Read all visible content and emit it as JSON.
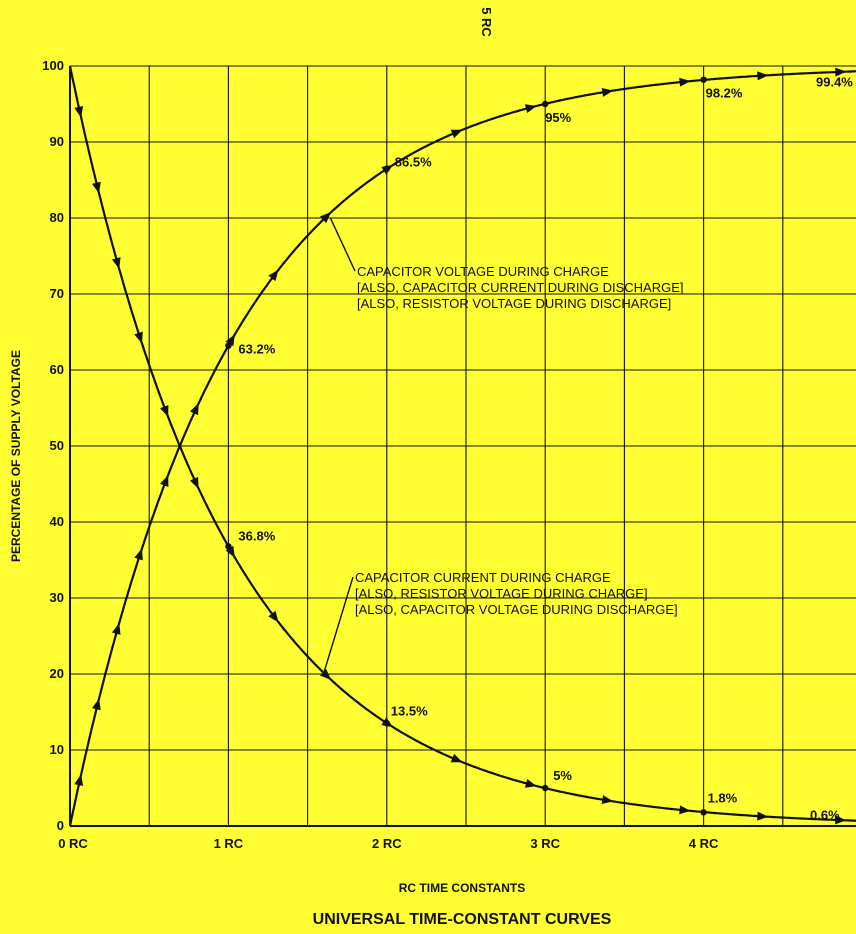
{
  "chart_data": {
    "type": "line",
    "title": "UNIVERSAL TIME-CONSTANT CURVES",
    "xlabel": "RC TIME CONSTANTS",
    "ylabel": "PERCENTAGE OF SUPPLY VOLTAGE",
    "top_label": "5 RC",
    "xlim": [
      0,
      5
    ],
    "ylim": [
      0,
      100
    ],
    "grid": true,
    "x_ticks": [
      {
        "value": 0,
        "label": "0 RC"
      },
      {
        "value": 1,
        "label": "1 RC"
      },
      {
        "value": 2,
        "label": "2 RC"
      },
      {
        "value": 3,
        "label": "3 RC"
      },
      {
        "value": 4,
        "label": "4 RC"
      }
    ],
    "y_ticks": [
      {
        "value": 0,
        "label": "0"
      },
      {
        "value": 10,
        "label": "10"
      },
      {
        "value": 20,
        "label": "20"
      },
      {
        "value": 30,
        "label": "30"
      },
      {
        "value": 40,
        "label": "40"
      },
      {
        "value": 50,
        "label": "50"
      },
      {
        "value": 60,
        "label": "60"
      },
      {
        "value": 70,
        "label": "70"
      },
      {
        "value": 80,
        "label": "80"
      },
      {
        "value": 90,
        "label": "90"
      },
      {
        "value": 100,
        "label": "100"
      }
    ],
    "series": [
      {
        "key": "charge",
        "x": [
          0,
          1,
          2,
          3,
          4,
          5
        ],
        "y": [
          0,
          63.2,
          86.5,
          95,
          98.2,
          99.4
        ],
        "labels": [
          "",
          "63.2%",
          "86.5%",
          "95%",
          "98.2%",
          "99.4%"
        ]
      },
      {
        "key": "discharge",
        "x": [
          0,
          1,
          2,
          3,
          4,
          5
        ],
        "y": [
          100,
          36.8,
          13.5,
          5,
          1.8,
          0.6
        ],
        "labels": [
          "",
          "36.8%",
          "13.5%",
          "5%",
          "1.8%",
          "0.6%"
        ]
      }
    ],
    "annotations": [
      {
        "key": "charge-note",
        "lines": [
          "CAPACITOR VOLTAGE DURING CHARGE",
          "[ALSO, CAPACITOR CURRENT DURING DISCHARGE]",
          "[ALSO, RESISTOR VOLTAGE DURING  DISCHARGE]"
        ]
      },
      {
        "key": "discharge-note",
        "lines": [
          "CAPACITOR CURRENT DURING CHARGE",
          "[ALSO, RESISTOR VOLTAGE DURING CHARGE]",
          "[ALSO, CAPACITOR VOLTAGE DURING DISCHARGE]"
        ]
      }
    ]
  },
  "colors": {
    "background": "#ffff33",
    "ink": "#111111"
  }
}
